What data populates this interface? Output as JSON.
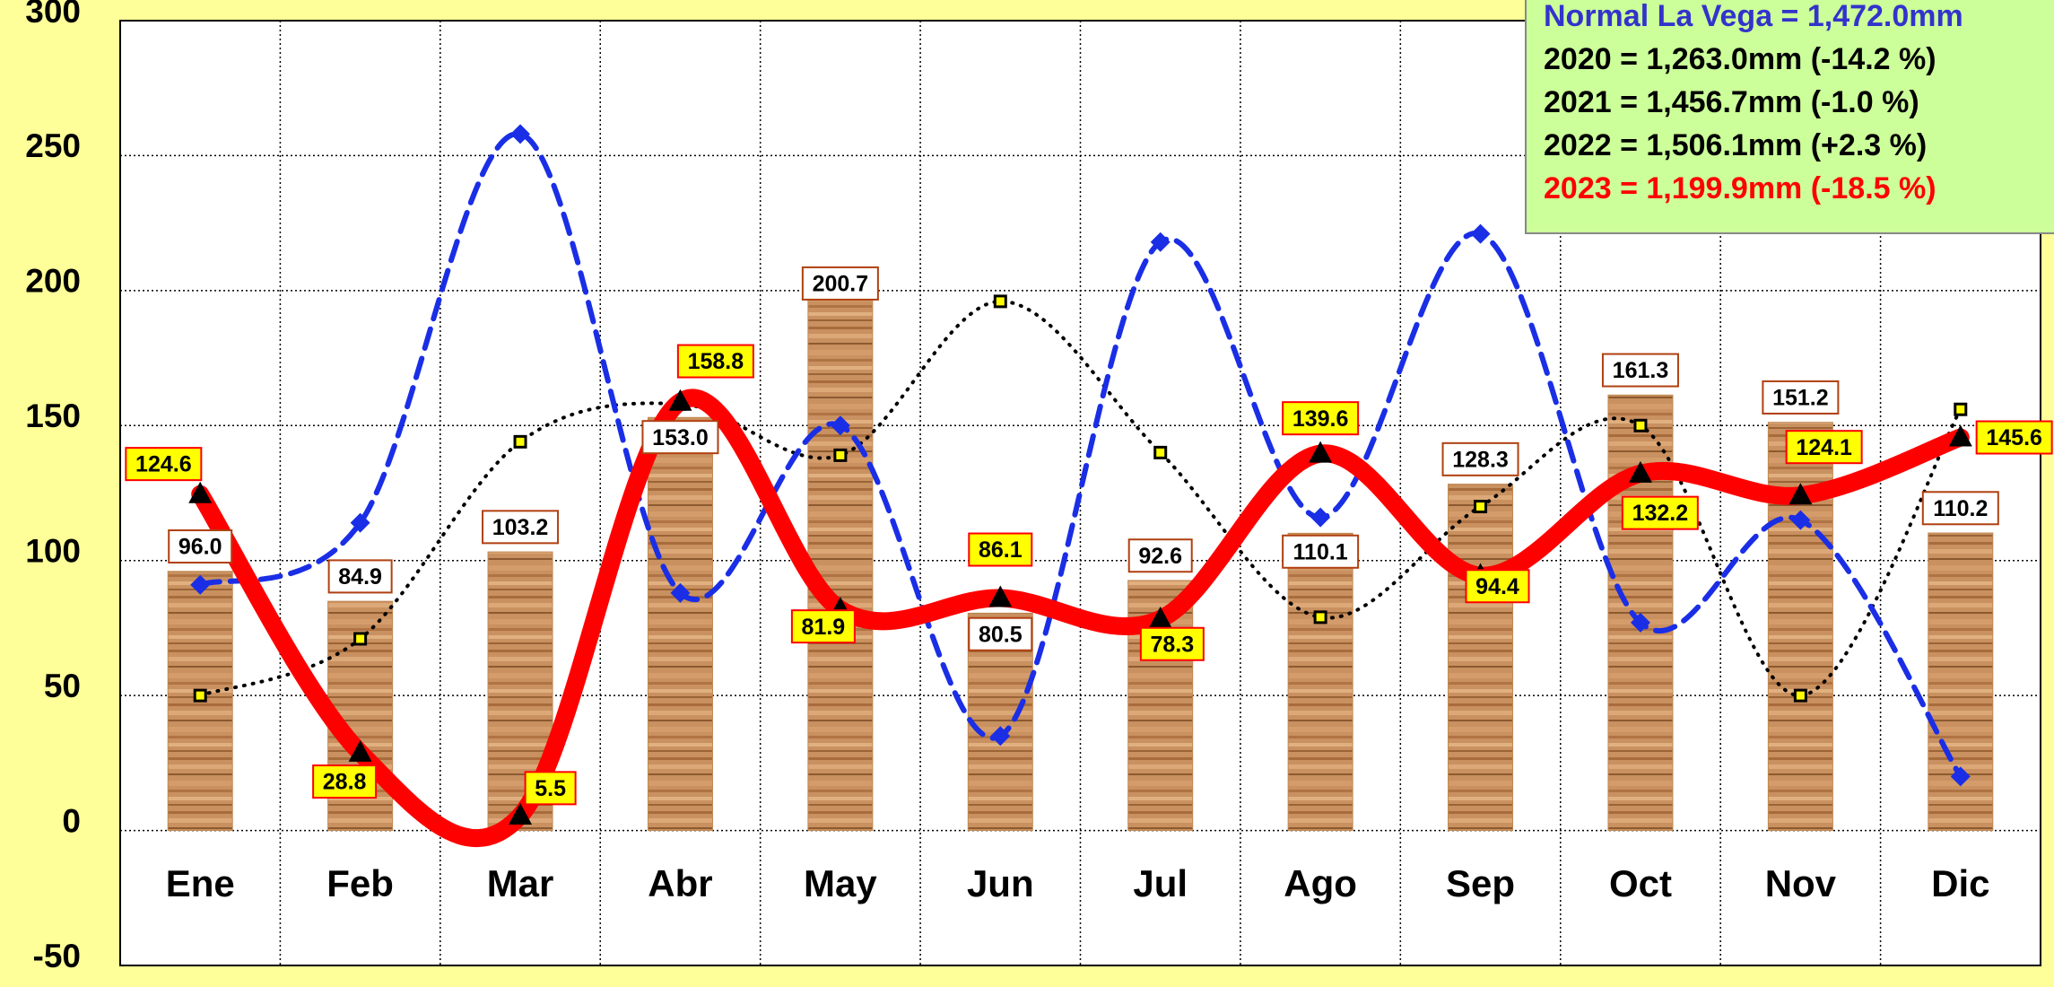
{
  "chart_data": {
    "type": "bar-line",
    "categories": [
      "Ene",
      "Feb",
      "Mar",
      "Abr",
      "May",
      "Jun",
      "Jul",
      "Ago",
      "Sep",
      "Oct",
      "Nov",
      "Dic"
    ],
    "ylim": [
      -50,
      300
    ],
    "yticks": [
      -50,
      0,
      50,
      100,
      150,
      200,
      250,
      300
    ],
    "grid": true,
    "series": [
      {
        "type": "bar",
        "color": "#c08850",
        "values": [
          96.0,
          84.9,
          103.2,
          153.0,
          200.7,
          80.5,
          92.6,
          110.1,
          128.3,
          161.3,
          151.2,
          110.2
        ],
        "value_labels": [
          "96.0",
          "84.9",
          "103.2",
          "153.0",
          "200.7",
          "80.5",
          "92.6",
          "110.1",
          "128.3",
          "161.3",
          "151.2",
          "110.2"
        ]
      },
      {
        "type": "line",
        "style": "dotted",
        "color": "#000000",
        "values": [
          50,
          71,
          144,
          158,
          139,
          196,
          140,
          79,
          120,
          150,
          50,
          156
        ]
      },
      {
        "type": "line",
        "style": "dashed",
        "color": "#1a2ee6",
        "values": [
          91,
          114,
          258,
          88,
          150,
          35,
          218,
          116,
          221,
          77,
          115,
          20
        ]
      },
      {
        "type": "line",
        "style": "solid",
        "color": "#ff0000",
        "values": [
          124.6,
          28.8,
          5.5,
          158.8,
          81.9,
          86.1,
          78.3,
          139.6,
          94.4,
          132.2,
          124.1,
          145.6
        ],
        "value_labels": [
          "124.6",
          "28.8",
          "5.5",
          "158.8",
          "81.9",
          "86.1",
          "78.3",
          "139.6",
          "94.4",
          "132.2",
          "124.1",
          "145.6"
        ]
      }
    ],
    "annotations": [
      {
        "text": "Normal La Vega = 1,472.0mm",
        "color": "#3333cc"
      },
      {
        "text": "2020 = 1,263.0mm (-14.2 %)",
        "color": "#000000"
      },
      {
        "text": "2021 = 1,456.7mm (-1.0 %)",
        "color": "#000000"
      },
      {
        "text": "2022 = 1,506.1mm (+2.3 %)",
        "color": "#000000"
      },
      {
        "text": "2023 = 1,199.9mm (-18.5 %)",
        "color": "#ff0000"
      }
    ]
  }
}
